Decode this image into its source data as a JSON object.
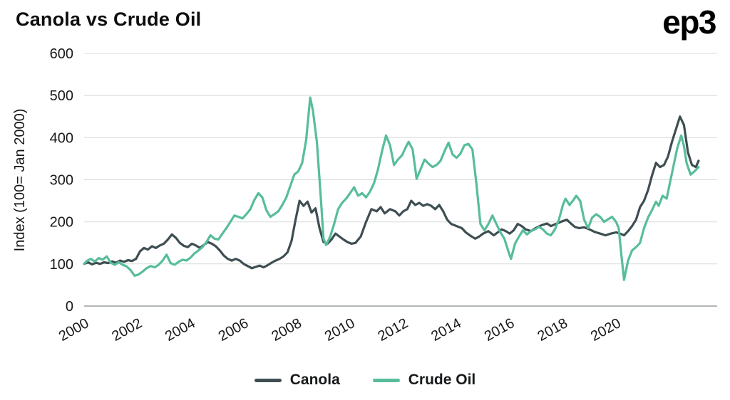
{
  "header": {
    "title": "Canola vs Crude Oil",
    "logo": "ep3"
  },
  "chart_data": {
    "type": "line",
    "title": "Canola vs Crude Oil",
    "xlabel": "",
    "ylabel": "Index (100= Jan 2000)",
    "xlim": [
      2000,
      2023.8
    ],
    "ylim": [
      0,
      600
    ],
    "x_ticks": [
      2000,
      2002,
      2004,
      2006,
      2008,
      2010,
      2012,
      2014,
      2016,
      2018,
      2020
    ],
    "y_ticks": [
      0,
      100,
      200,
      300,
      400,
      500,
      600
    ],
    "grid": "horizontal",
    "legend_position": "bottom",
    "series": [
      {
        "name": "Canola",
        "color": "#3e4e52",
        "points": [
          [
            2000.0,
            100
          ],
          [
            2000.15,
            104
          ],
          [
            2000.3,
            99
          ],
          [
            2000.45,
            103
          ],
          [
            2000.6,
            100
          ],
          [
            2000.75,
            104
          ],
          [
            2000.9,
            102
          ],
          [
            2001.05,
            106
          ],
          [
            2001.2,
            103
          ],
          [
            2001.35,
            108
          ],
          [
            2001.5,
            105
          ],
          [
            2001.65,
            109
          ],
          [
            2001.8,
            107
          ],
          [
            2001.95,
            112
          ],
          [
            2002.1,
            130
          ],
          [
            2002.25,
            138
          ],
          [
            2002.4,
            134
          ],
          [
            2002.55,
            142
          ],
          [
            2002.7,
            138
          ],
          [
            2002.85,
            144
          ],
          [
            2003.0,
            148
          ],
          [
            2003.15,
            158
          ],
          [
            2003.3,
            170
          ],
          [
            2003.45,
            162
          ],
          [
            2003.6,
            150
          ],
          [
            2003.75,
            143
          ],
          [
            2003.9,
            140
          ],
          [
            2004.05,
            148
          ],
          [
            2004.2,
            144
          ],
          [
            2004.35,
            138
          ],
          [
            2004.5,
            145
          ],
          [
            2004.65,
            152
          ],
          [
            2004.8,
            148
          ],
          [
            2004.95,
            142
          ],
          [
            2005.1,
            132
          ],
          [
            2005.25,
            120
          ],
          [
            2005.4,
            112
          ],
          [
            2005.55,
            108
          ],
          [
            2005.7,
            112
          ],
          [
            2005.85,
            108
          ],
          [
            2006.0,
            100
          ],
          [
            2006.15,
            95
          ],
          [
            2006.3,
            90
          ],
          [
            2006.45,
            93
          ],
          [
            2006.6,
            96
          ],
          [
            2006.75,
            92
          ],
          [
            2006.9,
            97
          ],
          [
            2007.05,
            103
          ],
          [
            2007.2,
            108
          ],
          [
            2007.35,
            112
          ],
          [
            2007.5,
            118
          ],
          [
            2007.65,
            128
          ],
          [
            2007.8,
            155
          ],
          [
            2007.95,
            205
          ],
          [
            2008.1,
            250
          ],
          [
            2008.25,
            238
          ],
          [
            2008.4,
            248
          ],
          [
            2008.55,
            222
          ],
          [
            2008.7,
            232
          ],
          [
            2008.85,
            185
          ],
          [
            2009.0,
            152
          ],
          [
            2009.15,
            148
          ],
          [
            2009.3,
            158
          ],
          [
            2009.45,
            172
          ],
          [
            2009.6,
            165
          ],
          [
            2009.75,
            158
          ],
          [
            2009.9,
            152
          ],
          [
            2010.05,
            148
          ],
          [
            2010.2,
            150
          ],
          [
            2010.4,
            165
          ],
          [
            2010.6,
            200
          ],
          [
            2010.8,
            230
          ],
          [
            2011.0,
            225
          ],
          [
            2011.15,
            235
          ],
          [
            2011.3,
            220
          ],
          [
            2011.5,
            230
          ],
          [
            2011.7,
            225
          ],
          [
            2011.85,
            215
          ],
          [
            2012.0,
            225
          ],
          [
            2012.15,
            230
          ],
          [
            2012.3,
            250
          ],
          [
            2012.45,
            240
          ],
          [
            2012.6,
            245
          ],
          [
            2012.75,
            238
          ],
          [
            2012.9,
            242
          ],
          [
            2013.05,
            238
          ],
          [
            2013.2,
            230
          ],
          [
            2013.35,
            240
          ],
          [
            2013.5,
            225
          ],
          [
            2013.65,
            205
          ],
          [
            2013.8,
            195
          ],
          [
            2014.0,
            190
          ],
          [
            2014.2,
            185
          ],
          [
            2014.35,
            175
          ],
          [
            2014.5,
            168
          ],
          [
            2014.7,
            160
          ],
          [
            2014.85,
            165
          ],
          [
            2015.0,
            172
          ],
          [
            2015.2,
            178
          ],
          [
            2015.4,
            168
          ],
          [
            2015.55,
            175
          ],
          [
            2015.7,
            182
          ],
          [
            2015.85,
            178
          ],
          [
            2016.0,
            172
          ],
          [
            2016.15,
            180
          ],
          [
            2016.3,
            195
          ],
          [
            2016.45,
            190
          ],
          [
            2016.6,
            182
          ],
          [
            2016.8,
            178
          ],
          [
            2017.0,
            186
          ],
          [
            2017.2,
            192
          ],
          [
            2017.4,
            196
          ],
          [
            2017.55,
            190
          ],
          [
            2017.7,
            194
          ],
          [
            2017.85,
            198
          ],
          [
            2018.0,
            202
          ],
          [
            2018.15,
            205
          ],
          [
            2018.3,
            196
          ],
          [
            2018.45,
            188
          ],
          [
            2018.6,
            185
          ],
          [
            2018.8,
            187
          ],
          [
            2019.0,
            182
          ],
          [
            2019.2,
            176
          ],
          [
            2019.4,
            172
          ],
          [
            2019.6,
            168
          ],
          [
            2019.8,
            172
          ],
          [
            2020.0,
            175
          ],
          [
            2020.15,
            172
          ],
          [
            2020.3,
            168
          ],
          [
            2020.45,
            178
          ],
          [
            2020.6,
            190
          ],
          [
            2020.75,
            205
          ],
          [
            2020.9,
            235
          ],
          [
            2021.05,
            250
          ],
          [
            2021.2,
            275
          ],
          [
            2021.35,
            310
          ],
          [
            2021.5,
            340
          ],
          [
            2021.65,
            330
          ],
          [
            2021.8,
            335
          ],
          [
            2021.95,
            355
          ],
          [
            2022.1,
            390
          ],
          [
            2022.25,
            420
          ],
          [
            2022.4,
            450
          ],
          [
            2022.55,
            430
          ],
          [
            2022.7,
            365
          ],
          [
            2022.85,
            335
          ],
          [
            2023.0,
            330
          ],
          [
            2023.1,
            345
          ]
        ]
      },
      {
        "name": "Crude Oil",
        "color": "#57bd9b",
        "points": [
          [
            2000.0,
            100
          ],
          [
            2000.1,
            107
          ],
          [
            2000.25,
            112
          ],
          [
            2000.4,
            106
          ],
          [
            2000.55,
            114
          ],
          [
            2000.7,
            110
          ],
          [
            2000.85,
            118
          ],
          [
            2001.0,
            103
          ],
          [
            2001.15,
            98
          ],
          [
            2001.3,
            104
          ],
          [
            2001.45,
            98
          ],
          [
            2001.6,
            94
          ],
          [
            2001.75,
            85
          ],
          [
            2001.9,
            72
          ],
          [
            2002.05,
            75
          ],
          [
            2002.2,
            82
          ],
          [
            2002.35,
            90
          ],
          [
            2002.5,
            95
          ],
          [
            2002.65,
            92
          ],
          [
            2002.8,
            98
          ],
          [
            2002.95,
            108
          ],
          [
            2003.1,
            122
          ],
          [
            2003.25,
            102
          ],
          [
            2003.4,
            98
          ],
          [
            2003.55,
            105
          ],
          [
            2003.7,
            110
          ],
          [
            2003.85,
            108
          ],
          [
            2004.0,
            115
          ],
          [
            2004.15,
            125
          ],
          [
            2004.3,
            132
          ],
          [
            2004.45,
            140
          ],
          [
            2004.6,
            152
          ],
          [
            2004.75,
            168
          ],
          [
            2004.9,
            160
          ],
          [
            2005.05,
            158
          ],
          [
            2005.2,
            172
          ],
          [
            2005.35,
            185
          ],
          [
            2005.5,
            200
          ],
          [
            2005.65,
            215
          ],
          [
            2005.8,
            212
          ],
          [
            2005.95,
            208
          ],
          [
            2006.1,
            218
          ],
          [
            2006.25,
            230
          ],
          [
            2006.4,
            252
          ],
          [
            2006.55,
            268
          ],
          [
            2006.7,
            258
          ],
          [
            2006.85,
            228
          ],
          [
            2007.0,
            212
          ],
          [
            2007.15,
            218
          ],
          [
            2007.3,
            225
          ],
          [
            2007.45,
            240
          ],
          [
            2007.6,
            258
          ],
          [
            2007.75,
            285
          ],
          [
            2007.9,
            312
          ],
          [
            2008.05,
            320
          ],
          [
            2008.2,
            340
          ],
          [
            2008.35,
            395
          ],
          [
            2008.5,
            495
          ],
          [
            2008.6,
            465
          ],
          [
            2008.75,
            390
          ],
          [
            2008.9,
            255
          ],
          [
            2009.0,
            160
          ],
          [
            2009.1,
            145
          ],
          [
            2009.25,
            165
          ],
          [
            2009.4,
            195
          ],
          [
            2009.55,
            230
          ],
          [
            2009.7,
            245
          ],
          [
            2009.85,
            255
          ],
          [
            2010.0,
            268
          ],
          [
            2010.15,
            282
          ],
          [
            2010.3,
            262
          ],
          [
            2010.45,
            268
          ],
          [
            2010.6,
            258
          ],
          [
            2010.75,
            272
          ],
          [
            2010.9,
            292
          ],
          [
            2011.05,
            325
          ],
          [
            2011.2,
            368
          ],
          [
            2011.35,
            405
          ],
          [
            2011.5,
            382
          ],
          [
            2011.65,
            335
          ],
          [
            2011.8,
            348
          ],
          [
            2011.95,
            358
          ],
          [
            2012.1,
            378
          ],
          [
            2012.2,
            390
          ],
          [
            2012.35,
            372
          ],
          [
            2012.5,
            302
          ],
          [
            2012.65,
            325
          ],
          [
            2012.8,
            348
          ],
          [
            2012.95,
            338
          ],
          [
            2013.1,
            330
          ],
          [
            2013.25,
            335
          ],
          [
            2013.4,
            345
          ],
          [
            2013.55,
            368
          ],
          [
            2013.7,
            388
          ],
          [
            2013.85,
            360
          ],
          [
            2014.0,
            352
          ],
          [
            2014.15,
            362
          ],
          [
            2014.3,
            382
          ],
          [
            2014.45,
            385
          ],
          [
            2014.6,
            372
          ],
          [
            2014.75,
            290
          ],
          [
            2014.9,
            195
          ],
          [
            2015.05,
            180
          ],
          [
            2015.2,
            195
          ],
          [
            2015.35,
            215
          ],
          [
            2015.5,
            195
          ],
          [
            2015.65,
            175
          ],
          [
            2015.8,
            160
          ],
          [
            2015.95,
            130
          ],
          [
            2016.05,
            112
          ],
          [
            2016.2,
            148
          ],
          [
            2016.35,
            165
          ],
          [
            2016.5,
            180
          ],
          [
            2016.65,
            170
          ],
          [
            2016.8,
            178
          ],
          [
            2016.95,
            182
          ],
          [
            2017.1,
            188
          ],
          [
            2017.25,
            182
          ],
          [
            2017.4,
            172
          ],
          [
            2017.55,
            168
          ],
          [
            2017.7,
            182
          ],
          [
            2017.85,
            205
          ],
          [
            2018.0,
            240
          ],
          [
            2018.1,
            255
          ],
          [
            2018.25,
            240
          ],
          [
            2018.4,
            252
          ],
          [
            2018.5,
            262
          ],
          [
            2018.65,
            250
          ],
          [
            2018.8,
            205
          ],
          [
            2018.95,
            185
          ],
          [
            2019.1,
            210
          ],
          [
            2019.25,
            218
          ],
          [
            2019.4,
            212
          ],
          [
            2019.55,
            200
          ],
          [
            2019.7,
            206
          ],
          [
            2019.85,
            212
          ],
          [
            2020.0,
            200
          ],
          [
            2020.1,
            185
          ],
          [
            2020.2,
            120
          ],
          [
            2020.3,
            62
          ],
          [
            2020.45,
            108
          ],
          [
            2020.6,
            132
          ],
          [
            2020.75,
            140
          ],
          [
            2020.9,
            150
          ],
          [
            2021.05,
            185
          ],
          [
            2021.2,
            210
          ],
          [
            2021.35,
            228
          ],
          [
            2021.5,
            248
          ],
          [
            2021.6,
            238
          ],
          [
            2021.75,
            262
          ],
          [
            2021.9,
            255
          ],
          [
            2022.0,
            285
          ],
          [
            2022.15,
            330
          ],
          [
            2022.3,
            375
          ],
          [
            2022.45,
            405
          ],
          [
            2022.55,
            380
          ],
          [
            2022.65,
            340
          ],
          [
            2022.8,
            312
          ],
          [
            2022.95,
            320
          ],
          [
            2023.1,
            330
          ]
        ]
      }
    ]
  }
}
